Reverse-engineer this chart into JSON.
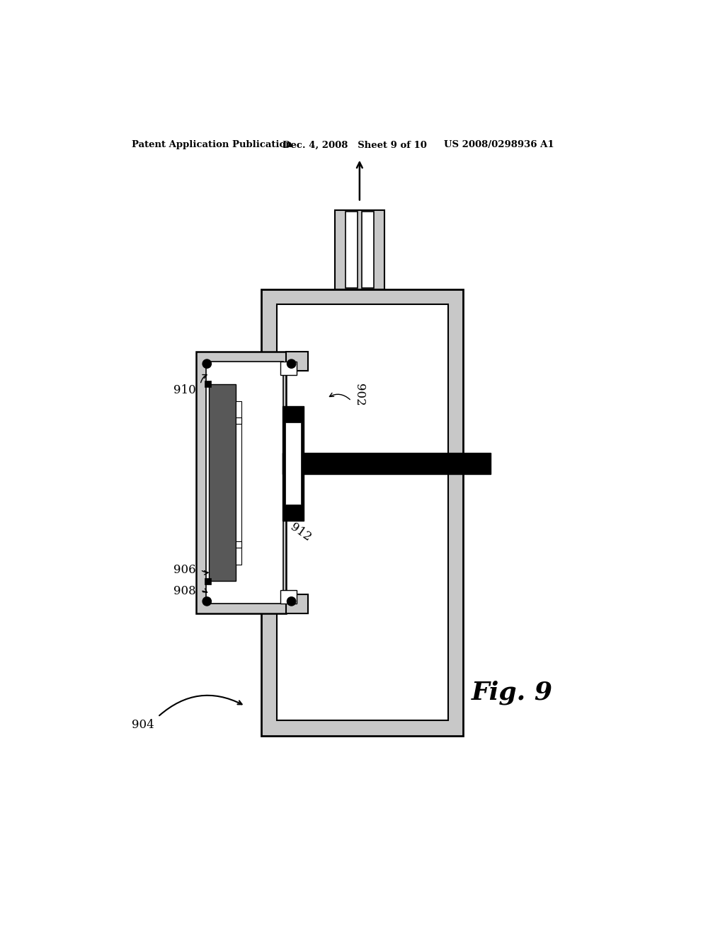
{
  "title_left": "Patent Application Publication",
  "title_mid": "Dec. 4, 2008   Sheet 9 of 10",
  "title_right": "US 2008/0298936 A1",
  "fig_label": "Fig. 9",
  "bg_color": "#ffffff",
  "gray_fill": "#c8c8c8",
  "dark_gray": "#888888"
}
